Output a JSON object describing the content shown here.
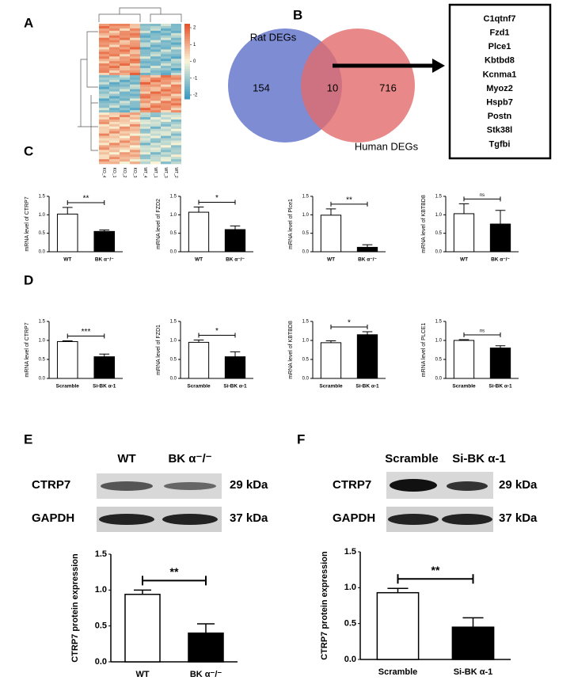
{
  "panel_labels": [
    "A",
    "B",
    "C",
    "D",
    "E",
    "F"
  ],
  "heatmap": {
    "columns": [
      "KO_4",
      "KO_1",
      "KO_2",
      "KO_3",
      "WT_4",
      "WT_1",
      "WT_3",
      "WT_2"
    ],
    "colorbar_ticks": [
      2,
      1,
      0,
      -1,
      -2
    ]
  },
  "venn": {
    "left_label": "Rat DEGs",
    "right_label": "Human DEGs",
    "left_only": 154,
    "overlap": 10,
    "right_only": 716
  },
  "gene_list": [
    "C1qtnf7",
    "Fzd1",
    "Plce1",
    "Kbtbd8",
    "Kcnma1",
    "Myoz2",
    "Hspb7",
    "Postn",
    "Stk38l",
    "Tgfbi"
  ],
  "blots": [
    {
      "lanes": [
        "WT",
        "BK α⁻/⁻"
      ],
      "proteins": [
        "CTRP7",
        "GAPDH"
      ],
      "sizes": [
        "29 kDa",
        "37 kDa"
      ]
    },
    {
      "lanes": [
        "Scramble",
        "Si-BK α-1"
      ],
      "proteins": [
        "CTRP7",
        "GAPDH"
      ],
      "sizes": [
        "29 kDa",
        "37 kDa"
      ]
    }
  ],
  "chart_data": [
    {
      "type": "bar",
      "y_label": "mRNA level of CTRP7",
      "categories": [
        "WT",
        "BK α⁻/⁻"
      ],
      "values": [
        1.02,
        0.55
      ],
      "errors": [
        0.18,
        0.04
      ],
      "significance": "**",
      "colors": [
        "#ffffff",
        "#000000"
      ],
      "ylim": [
        0,
        1.5
      ],
      "yticks": [
        {
          "value": 0,
          "label": "0.0"
        },
        {
          "value": 0.5,
          "label": "0.5"
        },
        {
          "value": 1,
          "label": "1.0"
        },
        {
          "value": 1.5,
          "label": "1.5"
        }
      ]
    },
    {
      "type": "bar",
      "y_label": "mRNA level of FZD2",
      "categories": [
        "WT",
        "BK α⁻/⁻"
      ],
      "values": [
        1.07,
        0.6
      ],
      "errors": [
        0.14,
        0.1
      ],
      "significance": "*",
      "colors": [
        "#ffffff",
        "#000000"
      ],
      "ylim": [
        0,
        1.5
      ],
      "yticks": [
        {
          "value": 0,
          "label": "0.0"
        },
        {
          "value": 0.5,
          "label": "0.5"
        },
        {
          "value": 1,
          "label": "1.0"
        },
        {
          "value": 1.5,
          "label": "1.5"
        }
      ]
    },
    {
      "type": "bar",
      "y_label": "mRNA level of Plce1",
      "categories": [
        "WT",
        "BK α⁻/⁻"
      ],
      "values": [
        0.99,
        0.12
      ],
      "errors": [
        0.17,
        0.07
      ],
      "significance": "**",
      "colors": [
        "#ffffff",
        "#000000"
      ],
      "ylim": [
        0,
        1.5
      ],
      "yticks": [
        {
          "value": 0,
          "label": "0.0"
        },
        {
          "value": 0.5,
          "label": "0.5"
        },
        {
          "value": 1,
          "label": "1.0"
        },
        {
          "value": 1.5,
          "label": "1.5"
        }
      ]
    },
    {
      "type": "bar",
      "y_label": "mRNA level of KBTBD8",
      "categories": [
        "WT",
        "BK α⁻/⁻"
      ],
      "values": [
        1.03,
        0.75
      ],
      "errors": [
        0.27,
        0.37
      ],
      "significance": "ns",
      "colors": [
        "#ffffff",
        "#000000"
      ],
      "ylim": [
        0,
        1.5
      ],
      "yticks": [
        {
          "value": 0,
          "label": "0.0"
        },
        {
          "value": 0.5,
          "label": "0.5"
        },
        {
          "value": 1,
          "label": "1.0"
        },
        {
          "value": 1.5,
          "label": "1.5"
        }
      ]
    },
    {
      "type": "bar",
      "y_label": "mRNA level of CTRP7",
      "categories": [
        "Scramble",
        "Si-BK α-1"
      ],
      "values": [
        0.97,
        0.57
      ],
      "errors": [
        0.02,
        0.07
      ],
      "significance": "***",
      "colors": [
        "#ffffff",
        "#000000"
      ],
      "ylim": [
        0,
        1.5
      ],
      "yticks": [
        {
          "value": 0,
          "label": "0.0"
        },
        {
          "value": 0.5,
          "label": "0.5"
        },
        {
          "value": 1,
          "label": "1.0"
        },
        {
          "value": 1.5,
          "label": "1.5"
        }
      ]
    },
    {
      "type": "bar",
      "y_label": "mRNA level of FZD1",
      "categories": [
        "Scramble",
        "Si-BK α-1"
      ],
      "values": [
        0.95,
        0.57
      ],
      "errors": [
        0.06,
        0.13
      ],
      "significance": "*",
      "colors": [
        "#ffffff",
        "#000000"
      ],
      "ylim": [
        0,
        1.5
      ],
      "yticks": [
        {
          "value": 0,
          "label": "0.0"
        },
        {
          "value": 0.5,
          "label": "0.5"
        },
        {
          "value": 1,
          "label": "1.0"
        },
        {
          "value": 1.5,
          "label": "1.5"
        }
      ]
    },
    {
      "type": "bar",
      "y_label": "mRNA level of KBTBD8",
      "categories": [
        "Scramble",
        "Si-BK α-1"
      ],
      "values": [
        0.94,
        1.15
      ],
      "errors": [
        0.05,
        0.08
      ],
      "significance": "*",
      "colors": [
        "#ffffff",
        "#000000"
      ],
      "ylim": [
        0,
        1.5
      ],
      "yticks": [
        {
          "value": 0,
          "label": "0.0"
        },
        {
          "value": 0.5,
          "label": "0.5"
        },
        {
          "value": 1,
          "label": "1.0"
        },
        {
          "value": 1.5,
          "label": "1.5"
        }
      ]
    },
    {
      "type": "bar",
      "y_label": "mRNA level of PLCE1",
      "categories": [
        "Scramble",
        "Si-BK α-1"
      ],
      "values": [
        1.0,
        0.8
      ],
      "errors": [
        0.02,
        0.06
      ],
      "significance": "ns",
      "colors": [
        "#ffffff",
        "#000000"
      ],
      "ylim": [
        0,
        1.5
      ],
      "yticks": [
        {
          "value": 0,
          "label": "0.0"
        },
        {
          "value": 0.5,
          "label": "0.5"
        },
        {
          "value": 1,
          "label": "1.0"
        },
        {
          "value": 1.5,
          "label": "1.5"
        }
      ]
    },
    {
      "type": "bar",
      "y_label": "CTRP7 protein expression",
      "categories": [
        "WT",
        "BK α⁻/⁻"
      ],
      "values": [
        0.94,
        0.4
      ],
      "errors": [
        0.06,
        0.13
      ],
      "significance": "**",
      "colors": [
        "#ffffff",
        "#000000"
      ],
      "ylim": [
        0,
        1.5
      ],
      "yticks": [
        {
          "value": 0,
          "label": "0.0"
        },
        {
          "value": 0.5,
          "label": "0.5"
        },
        {
          "value": 1,
          "label": "1.0"
        },
        {
          "value": 1.5,
          "label": "1.5"
        }
      ]
    },
    {
      "type": "bar",
      "y_label": "CTRP7 protein expression",
      "categories": [
        "Scramble",
        "Si-BK α-1"
      ],
      "values": [
        0.93,
        0.45
      ],
      "errors": [
        0.06,
        0.13
      ],
      "significance": "**",
      "colors": [
        "#ffffff",
        "#000000"
      ],
      "ylim": [
        0,
        1.5
      ],
      "yticks": [
        {
          "value": 0,
          "label": "0.0"
        },
        {
          "value": 0.5,
          "label": "0.5"
        },
        {
          "value": 1,
          "label": "1.0"
        },
        {
          "value": 1.5,
          "label": "1.5"
        }
      ]
    }
  ]
}
